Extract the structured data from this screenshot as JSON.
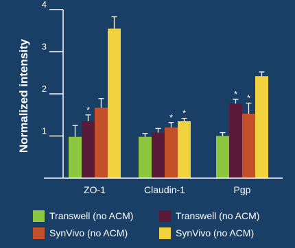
{
  "colors": {
    "background": "#1a3f66",
    "axis": "#ffffff",
    "error_bar": "#ffffff",
    "transwell": "#8dc63f",
    "transwell_no_acm": "#5a1a3a",
    "synvivo": "#c4502a",
    "synvivo_no_acm": "#f2d13e"
  },
  "chart_data": {
    "type": "bar",
    "ylabel": "Normalized intensity",
    "ylim": [
      0,
      4
    ],
    "yticks": [
      "1",
      "2",
      "3",
      "4"
    ],
    "categories": [
      "ZO-1",
      "Claudin-1",
      "Pgp"
    ],
    "grid": false,
    "legend_position": "bottom",
    "series": [
      {
        "name": "Transwell (no ACM)",
        "color": "#8dc63f",
        "values": [
          0.98,
          0.98,
          1.0
        ],
        "errors": [
          0.27,
          0.08,
          0.08
        ]
      },
      {
        "name": "Transwell (no ACM)",
        "color": "#5a1a3a",
        "values": [
          1.35,
          1.08,
          1.77
        ],
        "errors": [
          0.15,
          0.1,
          0.1
        ]
      },
      {
        "name": "SynVivo (no ACM)",
        "color": "#c4502a",
        "values": [
          1.67,
          1.2,
          1.53
        ],
        "errors": [
          0.22,
          0.12,
          0.25
        ]
      },
      {
        "name": "SynVivo (no ACM)",
        "color": "#f2d13e",
        "values": [
          3.55,
          1.35,
          2.42
        ],
        "errors": [
          0.28,
          0.07,
          0.1
        ]
      }
    ],
    "significance": [
      {
        "category": "ZO-1",
        "series": 1,
        "label": "*"
      },
      {
        "category": "Claudin-1",
        "series": 2,
        "label": "*"
      },
      {
        "category": "Claudin-1",
        "series": 3,
        "label": "*"
      },
      {
        "category": "Pgp",
        "series": 1,
        "label": "*"
      },
      {
        "category": "Pgp",
        "series": 2,
        "label": "*"
      }
    ]
  },
  "legend": {
    "items": [
      {
        "label": "Transwell (no ACM)",
        "color": "#8dc63f"
      },
      {
        "label": "Transwell (no ACM)",
        "color": "#5a1a3a"
      },
      {
        "label": "SynVivo (no ACM)",
        "color": "#c4502a"
      },
      {
        "label": "SynVivo (no ACM)",
        "color": "#f2d13e"
      }
    ]
  }
}
